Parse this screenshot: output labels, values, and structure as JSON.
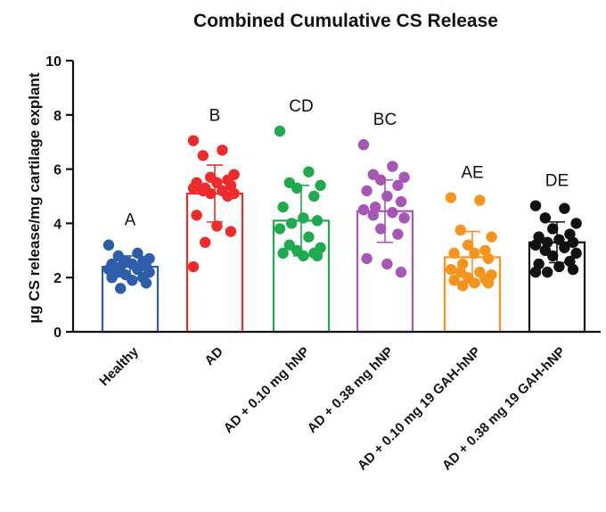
{
  "chart_data": {
    "type": "bar",
    "title": "Combined Cumulative CS Release",
    "xlabel": "",
    "ylabel": "µg CS release/mg cartilage explant",
    "ylim": [
      0,
      10
    ],
    "yticks": [
      0,
      2,
      4,
      6,
      8,
      10
    ],
    "grid": false,
    "legend": "none",
    "error_bars": "SD",
    "categories": [
      "Healthy",
      "AD",
      "AD + 0.10 mg hNP",
      "AD + 0.38 mg hNP",
      "AD + 0.10 mg 19 GAH-hNP",
      "AD + 0.38 mg 19 GAH-hNP"
    ],
    "colors": [
      "#2e5daa",
      "#ee2b2b",
      "#1faa4e",
      "#a656b5",
      "#f7941d",
      "#111111"
    ],
    "means": [
      2.4,
      5.1,
      4.1,
      4.45,
      2.75,
      3.3
    ],
    "sd": [
      0.4,
      1.05,
      1.3,
      1.15,
      0.95,
      0.75
    ],
    "significance_letters": [
      "A",
      "B",
      "CD",
      "BC",
      "AE",
      "DE"
    ],
    "points": [
      [
        3.2,
        2.9,
        2.8,
        2.7,
        2.6,
        2.6,
        2.5,
        2.5,
        2.4,
        2.4,
        2.3,
        2.3,
        2.2,
        2.2,
        2.1,
        2.0,
        2.0,
        1.9,
        1.8,
        1.6
      ],
      [
        7.05,
        6.7,
        6.5,
        5.8,
        5.7,
        5.6,
        5.5,
        5.5,
        5.4,
        5.3,
        5.3,
        5.2,
        5.2,
        5.1,
        5.1,
        5.0,
        4.3,
        3.9,
        3.7,
        3.3,
        2.4
      ],
      [
        7.4,
        5.9,
        5.5,
        5.4,
        5.3,
        5.0,
        4.6,
        4.2,
        4.1,
        4.0,
        3.8,
        3.5,
        3.2,
        3.1,
        3.0,
        2.9,
        2.9,
        2.8,
        2.8
      ],
      [
        6.9,
        6.1,
        5.8,
        5.7,
        5.6,
        5.4,
        5.2,
        5.0,
        4.8,
        4.6,
        4.5,
        4.4,
        4.3,
        4.2,
        3.8,
        3.6,
        2.7,
        2.5,
        2.2
      ],
      [
        4.95,
        4.85,
        3.75,
        3.5,
        3.2,
        3.0,
        2.9,
        2.9,
        2.7,
        2.5,
        2.3,
        2.2,
        2.2,
        2.1,
        2.0,
        1.95,
        1.9,
        1.8,
        1.8,
        1.7
      ],
      [
        4.65,
        4.55,
        4.2,
        4.0,
        3.8,
        3.6,
        3.5,
        3.4,
        3.3,
        3.3,
        3.2,
        3.1,
        3.0,
        2.9,
        2.8,
        2.6,
        2.5,
        2.4,
        2.3,
        2.2,
        2.2
      ]
    ]
  }
}
